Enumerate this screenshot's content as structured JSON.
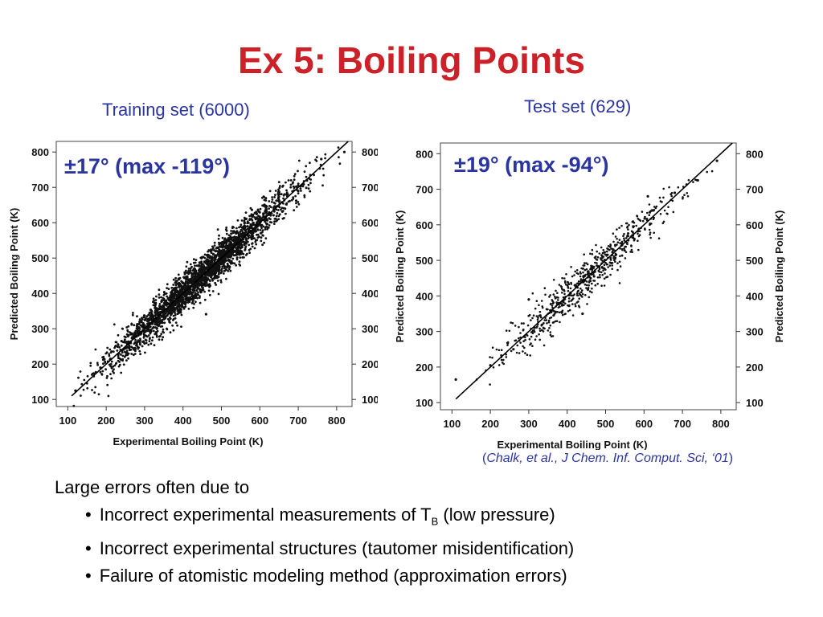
{
  "slide": {
    "title": "Ex 5: Boiling Points",
    "train_caption": "Training set (6000)",
    "test_caption": "Test set (629)",
    "train_stat": "±17° (max -119°)",
    "test_stat": "±19° (max -94°)",
    "citation_open": "(",
    "citation_text": "Chalk, et al., J Chem. Inf. Comput. Sci, ‘01",
    "citation_close": ")",
    "notes_intro": "Large errors often due to",
    "bullet1_pre": "Incorrect experimental measurements of T",
    "bullet1_sub": "B",
    "bullet1_post": " (low pressure)",
    "bullet2": "Incorrect experimental structures (tautomer misidentification)",
    "bullet3": "Failure of atomistic modeling method (approximation errors)"
  },
  "chart_data": [
    {
      "type": "scatter",
      "panel": "training",
      "xlabel": "Experimental Boiling Point (K)",
      "ylabel": "Predicted Boiling Point (K)",
      "x_ticks": [
        "100",
        "200",
        "300",
        "400",
        "500",
        "600",
        "700",
        "800"
      ],
      "y_ticks": [
        "100",
        "200",
        "300",
        "400",
        "500",
        "600",
        "700",
        "800"
      ],
      "xlim": [
        70,
        840
      ],
      "ylim": [
        80,
        830
      ],
      "right_axis_labels": true,
      "n_points": 6000,
      "error_sd": 17,
      "max_error": -119,
      "fit_line": {
        "x": [
          110,
          830
        ],
        "y": [
          110,
          830
        ]
      },
      "sample_points": [
        [
          120,
          125
        ],
        [
          185,
          190
        ],
        [
          240,
          265
        ],
        [
          300,
          310
        ],
        [
          350,
          340
        ],
        [
          400,
          405
        ],
        [
          450,
          440
        ],
        [
          500,
          510
        ],
        [
          550,
          540
        ],
        [
          600,
          615
        ],
        [
          650,
          660
        ],
        [
          700,
          690
        ],
        [
          760,
          780
        ],
        [
          820,
          800
        ],
        [
          460,
          341
        ],
        [
          380,
          430
        ],
        [
          330,
          290
        ],
        [
          560,
          600
        ]
      ]
    },
    {
      "type": "scatter",
      "panel": "test",
      "xlabel": "Experimental Boiling Point (K)",
      "ylabel": "Predicted Boiling Point (K)",
      "x_ticks": [
        "100",
        "200",
        "300",
        "400",
        "500",
        "600",
        "700",
        "800"
      ],
      "y_ticks": [
        "100",
        "200",
        "300",
        "400",
        "500",
        "600",
        "700",
        "800"
      ],
      "xlim": [
        70,
        840
      ],
      "ylim": [
        80,
        830
      ],
      "right_axis_labels": true,
      "n_points": 629,
      "error_sd": 19,
      "max_error": -94,
      "fit_line": {
        "x": [
          110,
          830
        ],
        "y": [
          110,
          830
        ]
      },
      "sample_points": [
        [
          110,
          165
        ],
        [
          200,
          205
        ],
        [
          260,
          250
        ],
        [
          330,
          345
        ],
        [
          370,
          355
        ],
        [
          420,
          430
        ],
        [
          470,
          455
        ],
        [
          520,
          530
        ],
        [
          575,
          560
        ],
        [
          620,
          640
        ],
        [
          680,
          690
        ],
        [
          740,
          725
        ],
        [
          790,
          780
        ],
        [
          440,
          350
        ],
        [
          300,
          390
        ],
        [
          610,
          680
        ]
      ]
    }
  ]
}
